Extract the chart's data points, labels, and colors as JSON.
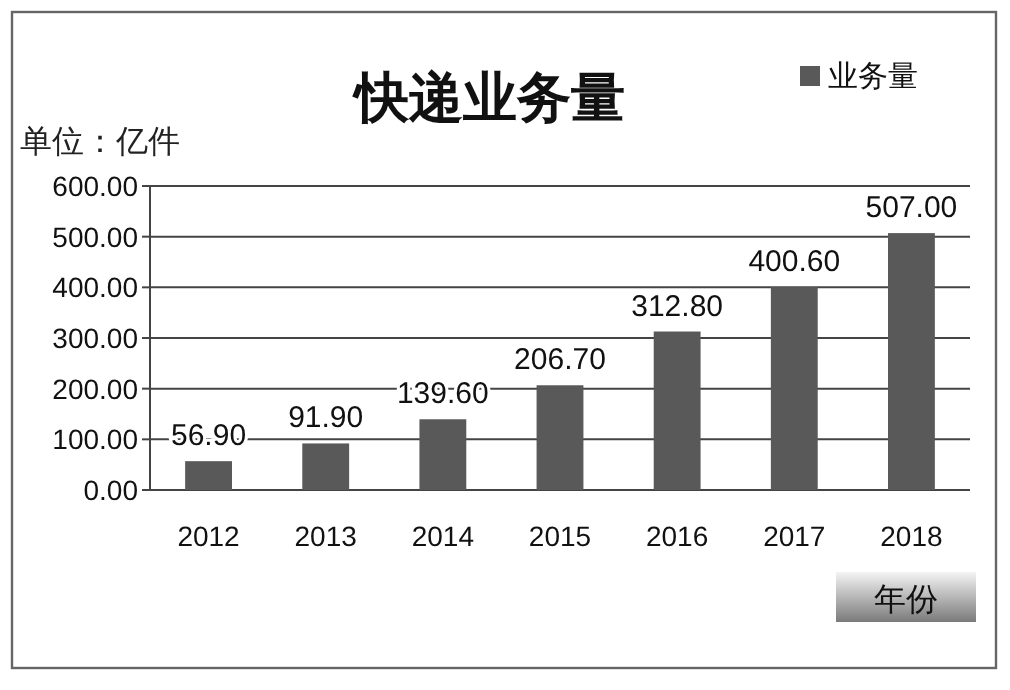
{
  "chart_data": {
    "type": "bar",
    "title": "快递业务量",
    "ylabel": "单位：亿件",
    "xlabel": "年份",
    "categories": [
      "2012",
      "2013",
      "2014",
      "2015",
      "2016",
      "2017",
      "2018"
    ],
    "series": [
      {
        "name": "业务量",
        "color": "#595959",
        "values": [
          56.9,
          91.9,
          139.6,
          206.7,
          312.8,
          400.6,
          507.0
        ],
        "value_labels": [
          "56.90",
          "91.90",
          "139.60",
          "206.70",
          "312.80",
          "400.60",
          "507.00"
        ]
      }
    ],
    "ylim": [
      0,
      600
    ],
    "yticks": [
      {
        "value": 0,
        "label": "0.00"
      },
      {
        "value": 100,
        "label": "100.00"
      },
      {
        "value": 200,
        "label": "200.00"
      },
      {
        "value": 300,
        "label": "300.00"
      },
      {
        "value": 400,
        "label": "400.00"
      },
      {
        "value": 500,
        "label": "500.00"
      },
      {
        "value": 600,
        "label": "600.00"
      }
    ],
    "grid": "y",
    "legend": "top right"
  }
}
